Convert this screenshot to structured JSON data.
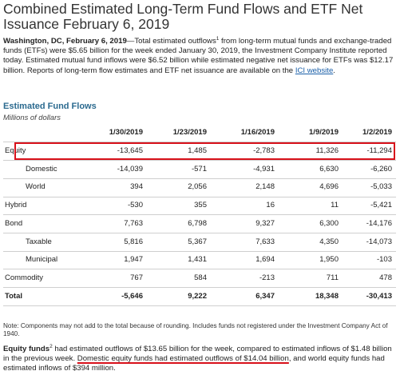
{
  "title": "Combined Estimated Long-Term Fund Flows and ETF Net Issuance February 6, 2019",
  "intro": {
    "dateline": "Washington, DC, February 6, 2019",
    "part1": "—Total estimated outflows",
    "footnote_mark": "1",
    "part2": " from long-term mutual funds and exchange-traded funds (ETFs) were $5.65 billion for the week ended January 30, 2019, the Investment Company Institute reported today. Estimated mutual fund inflows were $6.52 billion while estimated negative net issuance for ETFs was $12.17 billion. Reports of long-term flow estimates and ETF net issuance are available on the ",
    "link_text": "ICI website",
    "end": "."
  },
  "section": {
    "title": "Estimated Fund Flows",
    "subtitle": "Millions of dollars"
  },
  "table": {
    "columns": [
      "1/30/2019",
      "1/23/2019",
      "1/16/2019",
      "1/9/2019",
      "1/2/2019"
    ],
    "rows": [
      {
        "label": "Equity",
        "values": [
          "-13,645",
          "1,485",
          "-2,783",
          "11,326",
          "-11,294"
        ]
      },
      {
        "label": "Domestic",
        "values": [
          "-14,039",
          "-571",
          "-4,931",
          "6,630",
          "-6,260"
        ]
      },
      {
        "label": "World",
        "values": [
          "394",
          "2,056",
          "2,148",
          "4,696",
          "-5,033"
        ]
      },
      {
        "label": "Hybrid",
        "values": [
          "-530",
          "355",
          "16",
          "11",
          "-5,421"
        ]
      },
      {
        "label": "Bond",
        "values": [
          "7,763",
          "6,798",
          "9,327",
          "6,300",
          "-14,176"
        ]
      },
      {
        "label": "Taxable",
        "values": [
          "5,816",
          "5,367",
          "7,633",
          "4,350",
          "-14,073"
        ]
      },
      {
        "label": "Municipal",
        "values": [
          "1,947",
          "1,431",
          "1,694",
          "1,950",
          "-103"
        ]
      },
      {
        "label": "Commodity",
        "values": [
          "767",
          "584",
          "-213",
          "711",
          "478"
        ]
      },
      {
        "label": "Total",
        "values": [
          "-5,646",
          "9,222",
          "6,347",
          "18,348",
          "-30,413"
        ]
      }
    ]
  },
  "note": "Note: Components may not add to the total because of rounding. Includes funds not registered under the Investment Company Act of 1940.",
  "equity_para": {
    "lead": "Equity funds",
    "footnote_mark": "2",
    "part1": " had estimated outflows of $13.65 billion for the week, compared to estimated inflows of $1.48 billion in the previous week. ",
    "highlight": "Domestic equity funds had estimated outflows of $14.04 billion",
    "part2": ", and world equity funds had estimated inflows of $394 million."
  },
  "colors": {
    "accent_title": "#2b6a8f",
    "link": "#1a5fa8",
    "highlight_red": "#d8111b"
  }
}
